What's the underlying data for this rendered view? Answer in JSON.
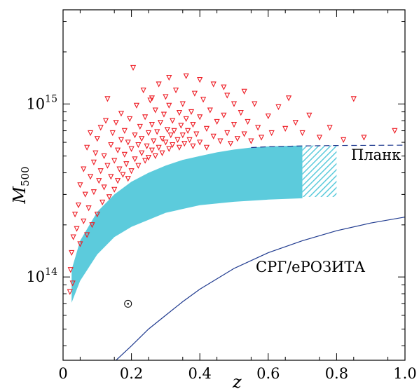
{
  "chart_data": {
    "type": "scatter",
    "title": "",
    "xlabel": "z",
    "ylabel_main": "M",
    "ylabel_sub": "500",
    "xlim": [
      0,
      1.0
    ],
    "ylim": [
      33000000000000.0,
      3500000000000000.0
    ],
    "y_scale": "log",
    "grid": false,
    "x_ticks": [
      {
        "value": 0,
        "label": "0"
      },
      {
        "value": 0.2,
        "label": "0.2"
      },
      {
        "value": 0.4,
        "label": "0.4"
      },
      {
        "value": 0.6,
        "label": "0.6"
      },
      {
        "value": 0.8,
        "label": "0.8"
      },
      {
        "value": 1.0,
        "label": "1.0"
      }
    ],
    "y_major_ticks": [
      {
        "value": 100000000000000.0,
        "base": "10",
        "exp": "14"
      },
      {
        "value": 1000000000000000.0,
        "base": "10",
        "exp": "15"
      }
    ],
    "annotations": {
      "planck_label": "Планк",
      "erosita_label": "СРГ/еРОЗИТА",
      "sun_symbol": {
        "x": 0.19,
        "y": 70000000000000.0
      }
    },
    "colors": {
      "points": "#ee1c24",
      "band": "#5ccbdc",
      "planck_line": "#1f3a8f",
      "erosita_line": "#1f3a8f"
    },
    "band_upper": [
      [
        0.025,
        110000000000000.0
      ],
      [
        0.05,
        162000000000000.0
      ],
      [
        0.1,
        238000000000000.0
      ],
      [
        0.15,
        300000000000000.0
      ],
      [
        0.2,
        355000000000000.0
      ],
      [
        0.25,
        400000000000000.0
      ],
      [
        0.3,
        440000000000000.0
      ],
      [
        0.35,
        475000000000000.0
      ],
      [
        0.4,
        500000000000000.0
      ],
      [
        0.45,
        525000000000000.0
      ],
      [
        0.5,
        545000000000000.0
      ],
      [
        0.55,
        560000000000000.0
      ],
      [
        0.6,
        568000000000000.0
      ],
      [
        0.65,
        572000000000000.0
      ],
      [
        0.7,
        575000000000000.0
      ]
    ],
    "band_lower": [
      [
        0.7,
        285000000000000.0
      ],
      [
        0.6,
        280000000000000.0
      ],
      [
        0.5,
        272000000000000.0
      ],
      [
        0.4,
        260000000000000.0
      ],
      [
        0.3,
        235000000000000.0
      ],
      [
        0.2,
        195000000000000.0
      ],
      [
        0.15,
        170000000000000.0
      ],
      [
        0.1,
        135000000000000.0
      ],
      [
        0.05,
        95000000000000.0
      ],
      [
        0.025,
        71000000000000.0
      ]
    ],
    "hatched_region": {
      "x0": 0.7,
      "x1": 0.8,
      "y_low": 290000000000000.0,
      "y_high": 575000000000000.0
    },
    "planck_dashed": [
      [
        0.55,
        560000000000000.0
      ],
      [
        0.6,
        566000000000000.0
      ],
      [
        0.7,
        572000000000000.0
      ],
      [
        0.8,
        575000000000000.0
      ],
      [
        0.9,
        576000000000000.0
      ],
      [
        1.0,
        578000000000000.0
      ]
    ],
    "erosita_curve": [
      [
        0.155,
        33000000000000.0
      ],
      [
        0.2,
        40000000000000.0
      ],
      [
        0.25,
        50000000000000.0
      ],
      [
        0.3,
        60000000000000.0
      ],
      [
        0.35,
        72000000000000.0
      ],
      [
        0.4,
        85000000000000.0
      ],
      [
        0.5,
        112000000000000.0
      ],
      [
        0.6,
        138000000000000.0
      ],
      [
        0.7,
        162000000000000.0
      ],
      [
        0.8,
        185000000000000.0
      ],
      [
        0.9,
        205000000000000.0
      ],
      [
        1.0,
        222000000000000.0
      ]
    ],
    "points": [
      [
        0.02,
        82000000000000.0
      ],
      [
        0.022,
        110000000000000.0
      ],
      [
        0.025,
        138000000000000.0
      ],
      [
        0.03,
        170000000000000.0
      ],
      [
        0.035,
        230000000000000.0
      ],
      [
        0.028,
        92000000000000.0
      ],
      [
        0.04,
        190000000000000.0
      ],
      [
        0.045,
        260000000000000.0
      ],
      [
        0.05,
        340000000000000.0
      ],
      [
        0.05,
        155000000000000.0
      ],
      [
        0.06,
        210000000000000.0
      ],
      [
        0.06,
        420000000000000.0
      ],
      [
        0.065,
        300000000000000.0
      ],
      [
        0.07,
        175000000000000.0
      ],
      [
        0.07,
        560000000000000.0
      ],
      [
        0.075,
        250000000000000.0
      ],
      [
        0.08,
        380000000000000.0
      ],
      [
        0.08,
        680000000000000.0
      ],
      [
        0.085,
        200000000000000.0
      ],
      [
        0.09,
        460000000000000.0
      ],
      [
        0.09,
        310000000000000.0
      ],
      [
        0.095,
        520000000000000.0
      ],
      [
        0.1,
        230000000000000.0
      ],
      [
        0.1,
        630000000000000.0
      ],
      [
        0.105,
        360000000000000.0
      ],
      [
        0.11,
        410000000000000.0
      ],
      [
        0.11,
        730000000000000.0
      ],
      [
        0.115,
        270000000000000.0
      ],
      [
        0.12,
        500000000000000.0
      ],
      [
        0.12,
        330000000000000.0
      ],
      [
        0.125,
        800000000000000.0
      ],
      [
        0.13,
        440000000000000.0
      ],
      [
        0.135,
        290000000000000.0
      ],
      [
        0.14,
        580000000000000.0
      ],
      [
        0.14,
        380000000000000.0
      ],
      [
        0.145,
        680000000000000.0
      ],
      [
        0.15,
        470000000000000.0
      ],
      [
        0.15,
        320000000000000.0
      ],
      [
        0.155,
        780000000000000.0
      ],
      [
        0.16,
        540000000000000.0
      ],
      [
        0.16,
        360000000000000.0
      ],
      [
        0.165,
        420000000000000.0
      ],
      [
        0.17,
        620000000000000.0
      ],
      [
        0.17,
        880000000000000.0
      ],
      [
        0.175,
        390000000000000.0
      ],
      [
        0.18,
        510000000000000.0
      ],
      [
        0.18,
        700000000000000.0
      ],
      [
        0.185,
        450000000000000.0
      ],
      [
        0.19,
        600000000000000.0
      ],
      [
        0.19,
        370000000000000.0
      ],
      [
        0.195,
        820000000000000.0
      ],
      [
        0.2,
        550000000000000.0
      ],
      [
        0.2,
        410000000000000.0
      ],
      [
        0.205,
        1620000000000000.0
      ],
      [
        0.21,
        660000000000000.0
      ],
      [
        0.21,
        480000000000000.0
      ],
      [
        0.215,
        980000000000000.0
      ],
      [
        0.22,
        580000000000000.0
      ],
      [
        0.22,
        440000000000000.0
      ],
      [
        0.225,
        740000000000000.0
      ],
      [
        0.23,
        520000000000000.0
      ],
      [
        0.23,
        630000000000000.0
      ],
      [
        0.235,
        1200000000000000.0
      ],
      [
        0.24,
        470000000000000.0
      ],
      [
        0.24,
        840000000000000.0
      ],
      [
        0.245,
        570000000000000.0
      ],
      [
        0.25,
        680000000000000.0
      ],
      [
        0.25,
        490000000000000.0
      ],
      [
        0.255,
        1050000000000000.0
      ],
      [
        0.26,
        540000000000000.0
      ],
      [
        0.26,
        760000000000000.0
      ],
      [
        0.265,
        610000000000000.0
      ],
      [
        0.27,
        920000000000000.0
      ],
      [
        0.27,
        500000000000000.0
      ],
      [
        0.275,
        690000000000000.0
      ],
      [
        0.28,
        560000000000000.0
      ],
      [
        0.28,
        1300000000000000.0
      ],
      [
        0.285,
        780000000000000.0
      ],
      [
        0.29,
        630000000000000.0
      ],
      [
        0.29,
        520000000000000.0
      ],
      [
        0.295,
        870000000000000.0
      ],
      [
        0.3,
        600000000000000.0
      ],
      [
        0.3,
        1100000000000000.0
      ],
      [
        0.305,
        710000000000000.0
      ],
      [
        0.31,
        550000000000000.0
      ],
      [
        0.31,
        980000000000000.0
      ],
      [
        0.315,
        660000000000000.0
      ],
      [
        0.32,
        800000000000000.0
      ],
      [
        0.32,
        580000000000000.0
      ],
      [
        0.325,
        700000000000000.0
      ],
      [
        0.33,
        1200000000000000.0
      ],
      [
        0.335,
        620000000000000.0
      ],
      [
        0.34,
        890000000000000.0
      ],
      [
        0.34,
        560000000000000.0
      ],
      [
        0.345,
        750000000000000.0
      ],
      [
        0.35,
        660000000000000.0
      ],
      [
        0.35,
        1000000000000000.0
      ],
      [
        0.355,
        590000000000000.0
      ],
      [
        0.36,
        820000000000000.0
      ],
      [
        0.36,
        1450000000000000.0
      ],
      [
        0.365,
        700000000000000.0
      ],
      [
        0.37,
        620000000000000.0
      ],
      [
        0.375,
        900000000000000.0
      ],
      [
        0.38,
        760000000000000.0
      ],
      [
        0.38,
        570000000000000.0
      ],
      [
        0.385,
        1150000000000000.0
      ],
      [
        0.39,
        670000000000000.0
      ],
      [
        0.4,
        840000000000000.0
      ],
      [
        0.4,
        600000000000000.0
      ],
      [
        0.41,
        1060000000000000.0
      ],
      [
        0.42,
        720000000000000.0
      ],
      [
        0.42,
        560000000000000.0
      ],
      [
        0.43,
        920000000000000.0
      ],
      [
        0.44,
        650000000000000.0
      ],
      [
        0.44,
        1300000000000000.0
      ],
      [
        0.45,
        790000000000000.0
      ],
      [
        0.46,
        610000000000000.0
      ],
      [
        0.47,
        860000000000000.0
      ],
      [
        0.48,
        1120000000000000.0
      ],
      [
        0.48,
        680000000000000.0
      ],
      [
        0.49,
        590000000000000.0
      ],
      [
        0.5,
        760000000000000.0
      ],
      [
        0.5,
        1000000000000000.0
      ],
      [
        0.51,
        630000000000000.0
      ],
      [
        0.52,
        890000000000000.0
      ],
      [
        0.53,
        670000000000000.0
      ],
      [
        0.54,
        790000000000000.0
      ],
      [
        0.55,
        610000000000000.0
      ],
      [
        0.56,
        1000000000000000.0
      ],
      [
        0.57,
        730000000000000.0
      ],
      [
        0.58,
        640000000000000.0
      ],
      [
        0.6,
        850000000000000.0
      ],
      [
        0.61,
        680000000000000.0
      ],
      [
        0.63,
        960000000000000.0
      ],
      [
        0.65,
        720000000000000.0
      ],
      [
        0.66,
        1080000000000000.0
      ],
      [
        0.68,
        780000000000000.0
      ],
      [
        0.7,
        680000000000000.0
      ],
      [
        0.72,
        860000000000000.0
      ],
      [
        0.75,
        640000000000000.0
      ],
      [
        0.78,
        730000000000000.0
      ],
      [
        0.82,
        620000000000000.0
      ],
      [
        0.85,
        1070000000000000.0
      ],
      [
        0.88,
        640000000000000.0
      ],
      [
        0.97,
        700000000000000.0
      ],
      [
        0.13,
        1070000000000000.0
      ],
      [
        0.26,
        1080000000000000.0
      ],
      [
        0.31,
        1420000000000000.0
      ],
      [
        0.4,
        1380000000000000.0
      ],
      [
        0.47,
        1250000000000000.0
      ],
      [
        0.53,
        1180000000000000.0
      ]
    ]
  }
}
